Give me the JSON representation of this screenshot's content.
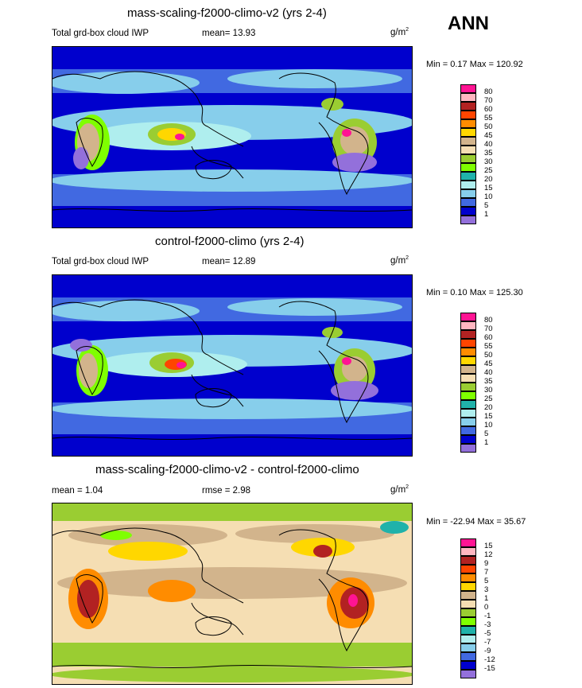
{
  "header": {
    "season": "ANN"
  },
  "panels": [
    {
      "title": "mass-scaling-f2000-climo-v2 (yrs 2-4)",
      "left_label": "Total grd-box cloud IWP",
      "stat1": "mean=  13.93",
      "stat2": "",
      "units": "g/m",
      "units_sup": "2",
      "minmax": "Min =   0.17 Max = 120.92",
      "levels": [
        "80",
        "70",
        "60",
        "55",
        "50",
        "45",
        "40",
        "35",
        "30",
        "25",
        "20",
        "15",
        "10",
        "5",
        "1"
      ],
      "colors": [
        "#ff1493",
        "#ffb6c1",
        "#b22222",
        "#ff4500",
        "#ff8c00",
        "#ffd700",
        "#d2b48c",
        "#f5deb3",
        "#9acd32",
        "#7fff00",
        "#20b2aa",
        "#afeeee",
        "#87ceeb",
        "#4169e1",
        "#0000cd",
        "#9370db"
      ]
    },
    {
      "title": "control-f2000-climo (yrs 2-4)",
      "left_label": "Total grd-box cloud IWP",
      "stat1": "mean=  12.89",
      "stat2": "",
      "units": "g/m",
      "units_sup": "2",
      "minmax": "Min =   0.10 Max = 125.30",
      "levels": [
        "80",
        "70",
        "60",
        "55",
        "50",
        "45",
        "40",
        "35",
        "30",
        "25",
        "20",
        "15",
        "10",
        "5",
        "1"
      ],
      "colors": [
        "#ff1493",
        "#ffb6c1",
        "#b22222",
        "#ff4500",
        "#ff8c00",
        "#ffd700",
        "#d2b48c",
        "#f5deb3",
        "#9acd32",
        "#7fff00",
        "#20b2aa",
        "#afeeee",
        "#87ceeb",
        "#4169e1",
        "#0000cd",
        "#9370db"
      ]
    },
    {
      "title": "mass-scaling-f2000-climo-v2 - control-f2000-climo",
      "left_label": "mean =   1.04",
      "stat1": "rmse =   2.98",
      "stat2": "",
      "units": "g/m",
      "units_sup": "2",
      "minmax": "Min = -22.94 Max =  35.67",
      "levels": [
        "15",
        "12",
        "9",
        "7",
        "5",
        "3",
        "1",
        "0",
        "-1",
        "-3",
        "-5",
        "-7",
        "-9",
        "-12",
        "-15"
      ],
      "colors": [
        "#ff1493",
        "#ffb6c1",
        "#b22222",
        "#ff4500",
        "#ff8c00",
        "#ffd700",
        "#d2b48c",
        "#f5deb3",
        "#9acd32",
        "#7fff00",
        "#20b2aa",
        "#afeeee",
        "#87ceeb",
        "#4169e1",
        "#0000cd",
        "#9370db"
      ]
    }
  ],
  "chart_data": [
    {
      "type": "heatmap",
      "title": "mass-scaling-f2000-climo-v2 (yrs 2-4)",
      "subtitle": "Total grd-box cloud IWP",
      "mean": 13.93,
      "min": 0.17,
      "max": 120.92,
      "units": "g/m2",
      "levels": [
        1,
        5,
        10,
        15,
        20,
        25,
        30,
        35,
        40,
        45,
        50,
        55,
        60,
        70,
        80
      ]
    },
    {
      "type": "heatmap",
      "title": "control-f2000-climo (yrs 2-4)",
      "subtitle": "Total grd-box cloud IWP",
      "mean": 12.89,
      "min": 0.1,
      "max": 125.3,
      "units": "g/m2",
      "levels": [
        1,
        5,
        10,
        15,
        20,
        25,
        30,
        35,
        40,
        45,
        50,
        55,
        60,
        70,
        80
      ]
    },
    {
      "type": "heatmap",
      "title": "mass-scaling-f2000-climo-v2 - control-f2000-climo",
      "mean": 1.04,
      "rmse": 2.98,
      "min": -22.94,
      "max": 35.67,
      "units": "g/m2",
      "levels": [
        -15,
        -12,
        -9,
        -7,
        -5,
        -3,
        -1,
        0,
        1,
        3,
        5,
        7,
        9,
        12,
        15
      ]
    }
  ]
}
